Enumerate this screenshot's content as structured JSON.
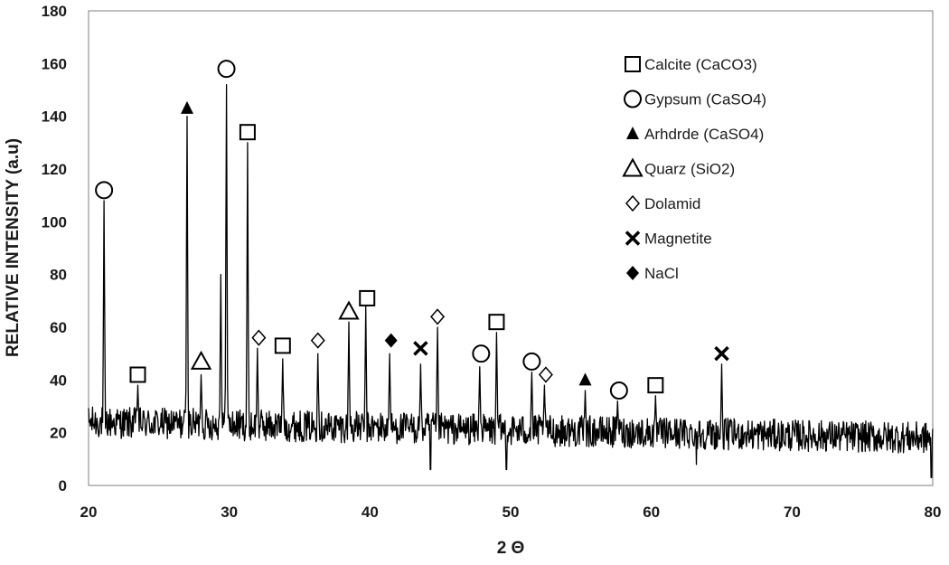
{
  "chart_data": {
    "type": "line",
    "title": "",
    "xlabel": "2 Θ",
    "ylabel": "RELATIVE INTENSITY (a.u)",
    "xlim": [
      20,
      80
    ],
    "ylim": [
      0,
      180
    ],
    "xticks": [
      20,
      30,
      40,
      50,
      60,
      70,
      80
    ],
    "yticks": [
      0,
      20,
      40,
      60,
      80,
      100,
      120,
      140,
      160,
      180
    ],
    "grid": false,
    "legend_position": "top-right",
    "series": [
      {
        "name": "",
        "color": "#000000",
        "baseline": {
          "x_range": [
            20,
            80
          ],
          "level_at_start": 24,
          "level_at_end": 18,
          "noise_amplitude": 6
        },
        "peaks": [
          {
            "x": 21.1,
            "y": 108
          },
          {
            "x": 23.5,
            "y": 38
          },
          {
            "x": 27.0,
            "y": 140
          },
          {
            "x": 28.0,
            "y": 42
          },
          {
            "x": 29.4,
            "y": 80
          },
          {
            "x": 29.8,
            "y": 152
          },
          {
            "x": 31.3,
            "y": 130
          },
          {
            "x": 32.0,
            "y": 52
          },
          {
            "x": 33.8,
            "y": 48
          },
          {
            "x": 36.3,
            "y": 50
          },
          {
            "x": 38.5,
            "y": 62
          },
          {
            "x": 39.7,
            "y": 68
          },
          {
            "x": 41.4,
            "y": 50
          },
          {
            "x": 43.6,
            "y": 46
          },
          {
            "x": 44.8,
            "y": 60
          },
          {
            "x": 47.8,
            "y": 45
          },
          {
            "x": 49.0,
            "y": 58
          },
          {
            "x": 51.5,
            "y": 43
          },
          {
            "x": 52.4,
            "y": 38
          },
          {
            "x": 55.3,
            "y": 36
          },
          {
            "x": 57.6,
            "y": 32
          },
          {
            "x": 60.3,
            "y": 34
          },
          {
            "x": 65.0,
            "y": 46
          }
        ],
        "dips": [
          {
            "x": 44.3,
            "y": 6
          },
          {
            "x": 49.7,
            "y": 6
          },
          {
            "x": 63.2,
            "y": 8
          },
          {
            "x": 79.9,
            "y": 3
          }
        ]
      }
    ],
    "legend": [
      {
        "label": "Calcite (CaCO3)",
        "marker": "open-square"
      },
      {
        "label": "Gypsum (CaSO4)",
        "marker": "open-circle"
      },
      {
        "label": "Arhdrde (CaSO4)",
        "marker": "filled-triangle"
      },
      {
        "label": "Quarz (SiO2)",
        "marker": "open-triangle"
      },
      {
        "label": "Dolamid",
        "marker": "open-diamond"
      },
      {
        "label": "Magnetite",
        "marker": "cross"
      },
      {
        "label": "NaCl",
        "marker": "filled-diamond"
      }
    ],
    "annotations": [
      {
        "x": 21.1,
        "y": 112,
        "marker": "open-circle"
      },
      {
        "x": 23.5,
        "y": 42,
        "marker": "open-square"
      },
      {
        "x": 27.0,
        "y": 143,
        "marker": "filled-triangle"
      },
      {
        "x": 28.0,
        "y": 47,
        "marker": "open-triangle"
      },
      {
        "x": 29.8,
        "y": 158,
        "marker": "open-circle"
      },
      {
        "x": 31.3,
        "y": 134,
        "marker": "open-square"
      },
      {
        "x": 32.1,
        "y": 56,
        "marker": "open-diamond"
      },
      {
        "x": 33.8,
        "y": 53,
        "marker": "open-square"
      },
      {
        "x": 36.3,
        "y": 55,
        "marker": "open-diamond"
      },
      {
        "x": 38.5,
        "y": 66,
        "marker": "open-triangle"
      },
      {
        "x": 39.8,
        "y": 71,
        "marker": "open-square"
      },
      {
        "x": 41.5,
        "y": 55,
        "marker": "filled-diamond"
      },
      {
        "x": 43.6,
        "y": 52,
        "marker": "cross"
      },
      {
        "x": 44.8,
        "y": 64,
        "marker": "open-diamond"
      },
      {
        "x": 47.9,
        "y": 50,
        "marker": "open-circle"
      },
      {
        "x": 49.0,
        "y": 62,
        "marker": "open-square"
      },
      {
        "x": 51.5,
        "y": 47,
        "marker": "open-circle"
      },
      {
        "x": 52.5,
        "y": 42,
        "marker": "open-diamond"
      },
      {
        "x": 55.3,
        "y": 40,
        "marker": "filled-triangle"
      },
      {
        "x": 57.7,
        "y": 36,
        "marker": "open-circle"
      },
      {
        "x": 60.3,
        "y": 38,
        "marker": "open-square"
      },
      {
        "x": 65.0,
        "y": 50,
        "marker": "cross"
      }
    ]
  }
}
